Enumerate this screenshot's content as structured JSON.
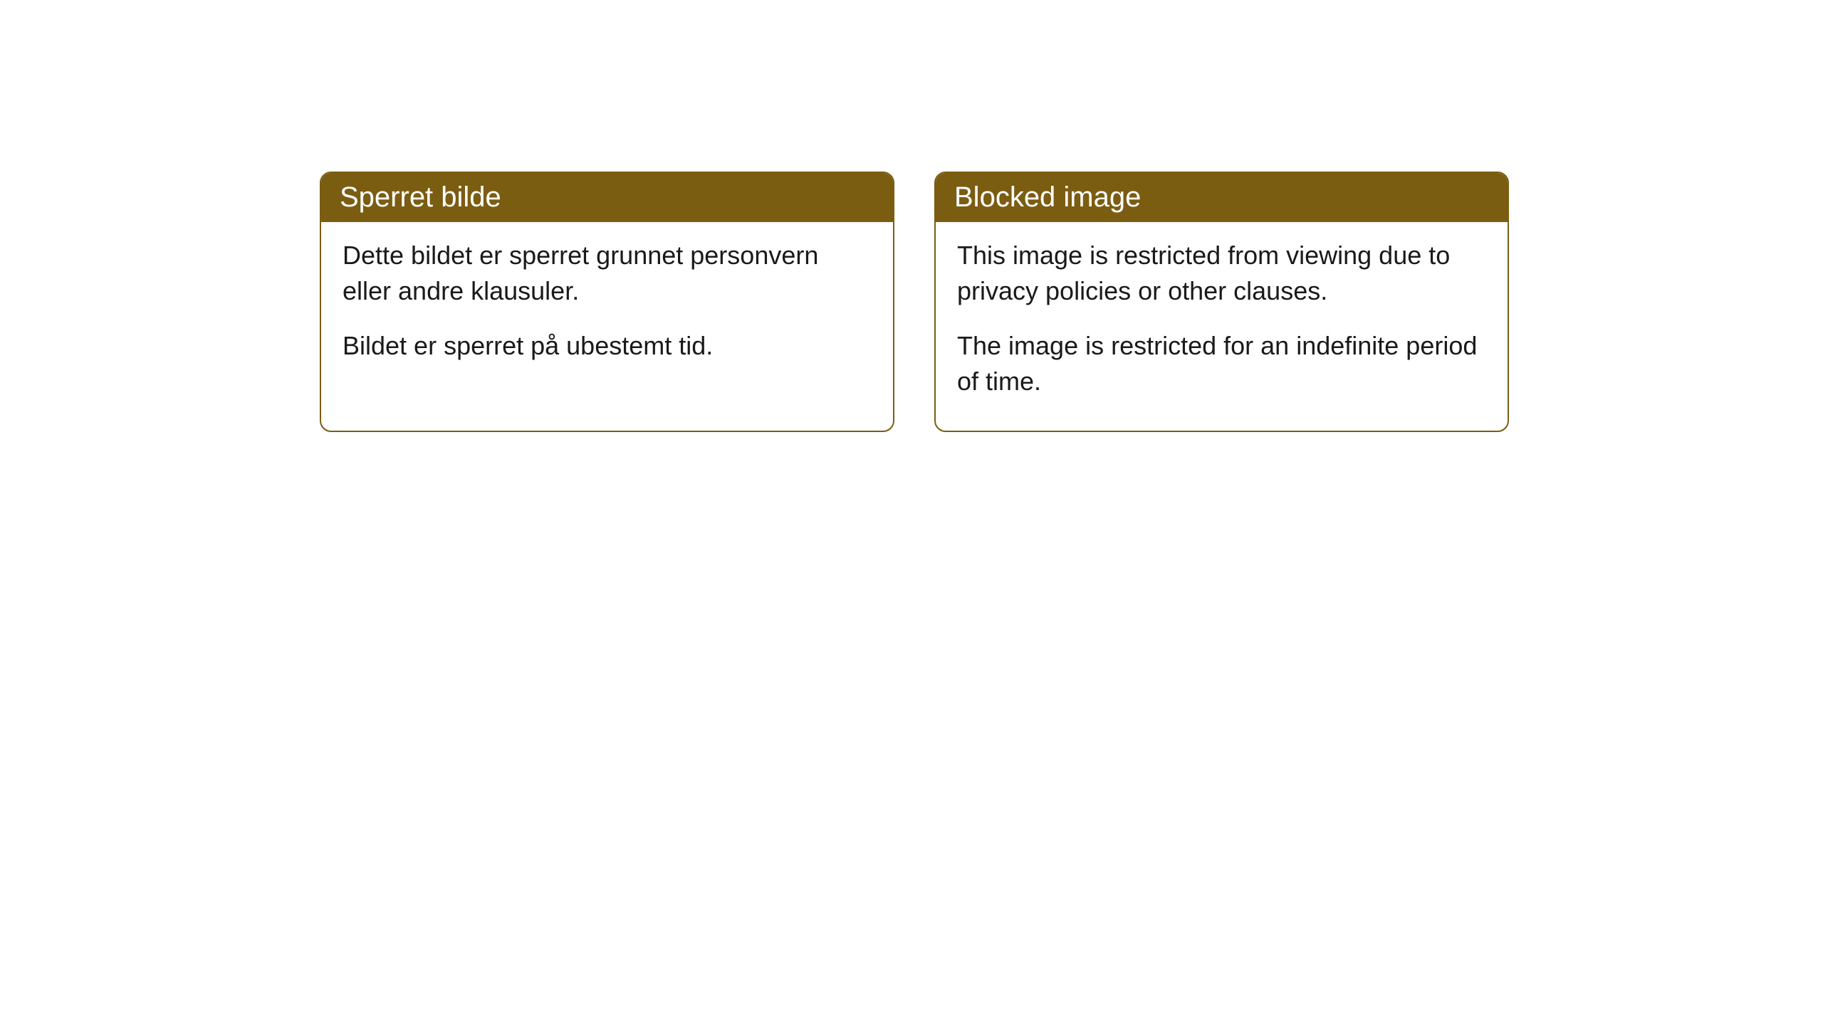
{
  "cards": [
    {
      "header": "Sperret bilde",
      "paragraph1": "Dette bildet er sperret grunnet personvern eller andre klausuler.",
      "paragraph2": "Bildet er sperret på ubestemt tid."
    },
    {
      "header": "Blocked image",
      "paragraph1": "This image is restricted from viewing due to privacy policies or other clauses.",
      "paragraph2": "The image is restricted for an indefinite period of time."
    }
  ],
  "styling": {
    "header_bg_color": "#7b5d12",
    "header_text_color": "#ffffff",
    "border_color": "#7b5d12",
    "body_text_color": "#1a1a1a",
    "card_bg_color": "#ffffff",
    "page_bg_color": "#ffffff",
    "border_radius": 16,
    "header_fontsize": 40,
    "body_fontsize": 36
  }
}
